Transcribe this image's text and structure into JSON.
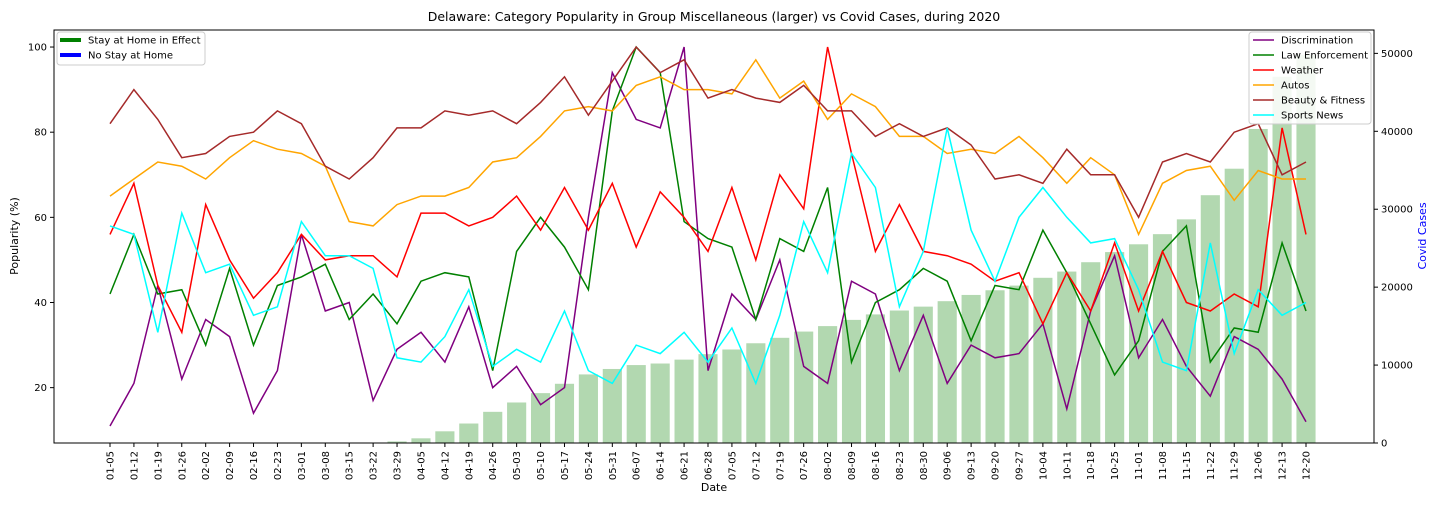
{
  "chart_data": {
    "type": "line",
    "title": "Delaware: Category Popularity in Group Miscellaneous (larger) vs Covid Cases, during 2020",
    "xlabel": "Date",
    "ylabel": "Popularity (%)",
    "y2label": "Covid Cases",
    "ylim": [
      7,
      104
    ],
    "y2lim": [
      0,
      53000
    ],
    "yticks": [
      20,
      40,
      60,
      80,
      100
    ],
    "y2ticks": [
      0,
      10000,
      20000,
      30000,
      40000,
      50000
    ],
    "grid": false,
    "x": [
      "01-05",
      "01-12",
      "01-19",
      "01-26",
      "02-02",
      "02-09",
      "02-16",
      "02-23",
      "03-01",
      "03-08",
      "03-15",
      "03-22",
      "03-29",
      "04-05",
      "04-12",
      "04-19",
      "04-26",
      "05-03",
      "05-10",
      "05-17",
      "05-24",
      "05-31",
      "06-07",
      "06-14",
      "06-21",
      "06-28",
      "07-05",
      "07-12",
      "07-19",
      "07-26",
      "08-02",
      "08-09",
      "08-16",
      "08-23",
      "08-30",
      "09-06",
      "09-13",
      "09-20",
      "09-27",
      "10-04",
      "10-11",
      "10-18",
      "10-25",
      "11-01",
      "11-08",
      "11-15",
      "11-22",
      "11-29",
      "12-06",
      "12-13",
      "12-20"
    ],
    "bars": {
      "name": "Covid Cases",
      "color": "#b2d8b0",
      "values": [
        0,
        0,
        0,
        0,
        0,
        0,
        0,
        0,
        0,
        0,
        0,
        0,
        200,
        600,
        1500,
        2500,
        4000,
        5200,
        6400,
        7600,
        8800,
        9500,
        10000,
        10200,
        10700,
        11400,
        12000,
        12800,
        13500,
        14300,
        15000,
        15800,
        16500,
        17000,
        17500,
        18200,
        19000,
        19600,
        20200,
        21200,
        22000,
        23200,
        24500,
        25500,
        26800,
        28700,
        31800,
        35200,
        40300,
        47000,
        49800
      ]
    },
    "series": [
      {
        "name": "Discrimination",
        "color": "#800080",
        "values": [
          11,
          21,
          44,
          22,
          36,
          32,
          14,
          24,
          56,
          38,
          40,
          17,
          29,
          33,
          26,
          39,
          20,
          25,
          16,
          20,
          60,
          94,
          83,
          81,
          100,
          24,
          42,
          36,
          50,
          25,
          21,
          45,
          42,
          24,
          37,
          21,
          30,
          27,
          28,
          35,
          15,
          38,
          51,
          27,
          36,
          25,
          18,
          32,
          29,
          22,
          12
        ]
      },
      {
        "name": "Law Enforcement",
        "color": "#008000",
        "values": [
          42,
          56,
          42,
          43,
          30,
          48,
          30,
          44,
          46,
          49,
          36,
          42,
          35,
          45,
          47,
          46,
          24,
          52,
          60,
          53,
          43,
          85,
          100,
          94,
          59,
          55,
          53,
          36,
          55,
          52,
          67,
          26,
          40,
          43,
          48,
          45,
          31,
          44,
          43,
          57,
          47,
          35,
          23,
          31,
          52,
          58,
          26,
          34,
          33,
          54,
          38
        ]
      },
      {
        "name": "Weather",
        "color": "#ff0000",
        "values": [
          56,
          68,
          44,
          33,
          63,
          50,
          41,
          47,
          56,
          50,
          51,
          51,
          46,
          61,
          61,
          58,
          60,
          65,
          57,
          67,
          57,
          68,
          53,
          66,
          60,
          52,
          67,
          50,
          70,
          62,
          100,
          75,
          52,
          63,
          52,
          51,
          49,
          45,
          47,
          35,
          47,
          38,
          54,
          38,
          52,
          40,
          38,
          42,
          39,
          81,
          56
        ]
      },
      {
        "name": "Autos",
        "color": "#ffa500",
        "values": [
          65,
          69,
          73,
          72,
          69,
          74,
          78,
          76,
          75,
          72,
          59,
          58,
          63,
          65,
          65,
          67,
          73,
          74,
          79,
          85,
          86,
          85,
          91,
          93,
          90,
          90,
          89,
          97,
          88,
          92,
          83,
          89,
          86,
          79,
          79,
          75,
          76,
          75,
          79,
          74,
          68,
          74,
          70,
          56,
          68,
          71,
          72,
          64,
          71,
          69,
          69
        ]
      },
      {
        "name": "Beauty & Fitness",
        "color": "#a52a2a",
        "values": [
          82,
          90,
          83,
          74,
          75,
          79,
          80,
          85,
          82,
          72,
          69,
          74,
          81,
          81,
          85,
          84,
          85,
          82,
          87,
          93,
          84,
          92,
          100,
          94,
          97,
          88,
          90,
          88,
          87,
          91,
          85,
          85,
          79,
          82,
          79,
          81,
          77,
          69,
          70,
          68,
          76,
          70,
          70,
          60,
          73,
          75,
          73,
          80,
          82,
          70,
          73
        ]
      },
      {
        "name": "Sports News",
        "color": "#00ffff",
        "values": [
          58,
          56,
          33,
          61,
          47,
          49,
          37,
          39,
          59,
          51,
          51,
          48,
          27,
          26,
          32,
          43,
          25,
          29,
          26,
          38,
          24,
          21,
          30,
          28,
          33,
          26,
          34,
          21,
          37,
          59,
          47,
          75,
          67,
          39,
          52,
          81,
          57,
          45,
          60,
          67,
          60,
          54,
          55,
          43,
          26,
          24,
          54,
          28,
          43,
          37,
          40
        ]
      }
    ],
    "legend_left": {
      "placement": "top-left",
      "entries": [
        {
          "label": "Stay at Home in Effect",
          "color": "#008000"
        },
        {
          "label": "No Stay at Home",
          "color": "#0000ff"
        }
      ]
    },
    "legend_right": {
      "placement": "top-right"
    }
  }
}
